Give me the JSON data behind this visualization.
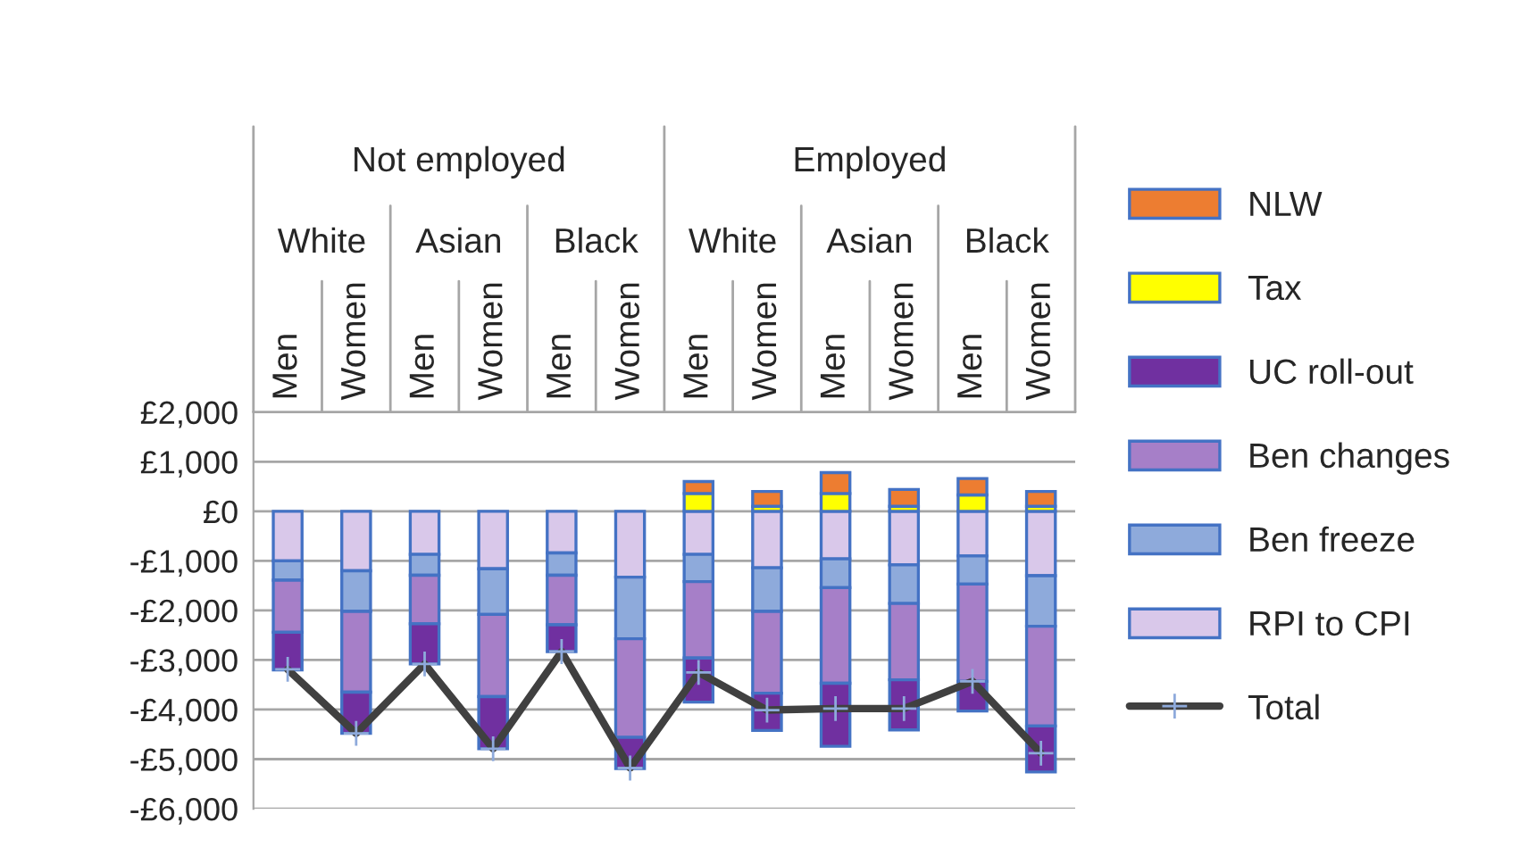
{
  "chart_data": {
    "type": "bar",
    "stacked": true,
    "categories": [
      "Men",
      "Women",
      "Men",
      "Women",
      "Men",
      "Women",
      "Men",
      "Women",
      "Men",
      "Women",
      "Men",
      "Women"
    ],
    "annotations": [
      "Not employed",
      "Employed",
      "White",
      "Asian",
      "Black",
      "White",
      "Asian",
      "Black"
    ],
    "series": [
      {
        "name": "RPI to CPI",
        "color": "#d9c8ea",
        "values": [
          -1000,
          -1200,
          -870,
          -1160,
          -840,
          -1330,
          -870,
          -1140,
          -960,
          -1080,
          -900,
          -1300
        ]
      },
      {
        "name": "Ben freeze",
        "color": "#8eaadb",
        "values": [
          -390,
          -820,
          -420,
          -920,
          -450,
          -1240,
          -550,
          -880,
          -580,
          -780,
          -570,
          -1020
        ]
      },
      {
        "name": "Ben changes",
        "color": "#a67fc8",
        "values": [
          -1050,
          -1630,
          -980,
          -1660,
          -1000,
          -1990,
          -1540,
          -1650,
          -1930,
          -1540,
          -1960,
          -2010
        ]
      },
      {
        "name": "UC roll-out",
        "color": "#7030a0",
        "values": [
          -760,
          -830,
          -810,
          -1050,
          -540,
          -630,
          -890,
          -750,
          -1270,
          -1010,
          -600,
          -930
        ]
      },
      {
        "name": "Tax",
        "color": "#ffff00",
        "values": [
          0,
          0,
          0,
          0,
          0,
          0,
          360,
          100,
          360,
          100,
          330,
          100
        ]
      },
      {
        "name": "NLW",
        "color": "#ed7d31",
        "values": [
          0,
          0,
          0,
          0,
          0,
          0,
          240,
          300,
          420,
          340,
          330,
          300
        ]
      },
      {
        "name": "Total",
        "type": "line",
        "color": "#404040",
        "marker": "cross",
        "values": [
          -3190,
          -4480,
          -3080,
          -4790,
          -2830,
          -5180,
          -3250,
          -4010,
          -3980,
          -3980,
          -3430,
          -4880
        ]
      }
    ],
    "ylim": [
      -6000,
      2000
    ],
    "yticks": [
      {
        "value": -6000,
        "label": "-£6,000"
      },
      {
        "value": -5000,
        "label": "-£5,000"
      },
      {
        "value": -4000,
        "label": "-£4,000"
      },
      {
        "value": -3000,
        "label": "-£3,000"
      },
      {
        "value": -2000,
        "label": "-£2,000"
      },
      {
        "value": -1000,
        "label": "-£1,000"
      },
      {
        "value": 0,
        "label": "£0"
      },
      {
        "value": 1000,
        "label": "£1,000"
      },
      {
        "value": 2000,
        "label": "£2,000"
      }
    ],
    "grid": "y",
    "legend": "right"
  }
}
